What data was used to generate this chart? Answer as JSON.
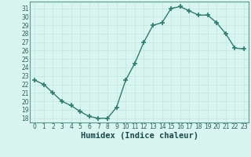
{
  "x": [
    0,
    1,
    2,
    3,
    4,
    5,
    6,
    7,
    8,
    9,
    10,
    11,
    12,
    13,
    14,
    15,
    16,
    17,
    18,
    19,
    20,
    21,
    22,
    23
  ],
  "y": [
    22.5,
    22.0,
    21.0,
    20.0,
    19.5,
    18.8,
    18.2,
    18.0,
    18.0,
    19.3,
    22.5,
    24.5,
    27.0,
    29.0,
    29.3,
    31.0,
    31.2,
    30.7,
    30.2,
    30.2,
    29.3,
    28.0,
    26.3,
    26.2
  ],
  "line_color": "#2e7d6e",
  "marker": "+",
  "markersize": 4,
  "markeredgewidth": 1.2,
  "linewidth": 1.0,
  "bg_color": "#d8f5f0",
  "grid_color": "#c0e8e0",
  "xlabel": "Humidex (Indice chaleur)",
  "xlim": [
    -0.5,
    23.5
  ],
  "ylim": [
    17.5,
    31.8
  ],
  "yticks": [
    18,
    19,
    20,
    21,
    22,
    23,
    24,
    25,
    26,
    27,
    28,
    29,
    30,
    31
  ],
  "xticks": [
    0,
    1,
    2,
    3,
    4,
    5,
    6,
    7,
    8,
    9,
    10,
    11,
    12,
    13,
    14,
    15,
    16,
    17,
    18,
    19,
    20,
    21,
    22,
    23
  ],
  "tick_labelsize": 5.5,
  "xlabel_fontsize": 7.5
}
